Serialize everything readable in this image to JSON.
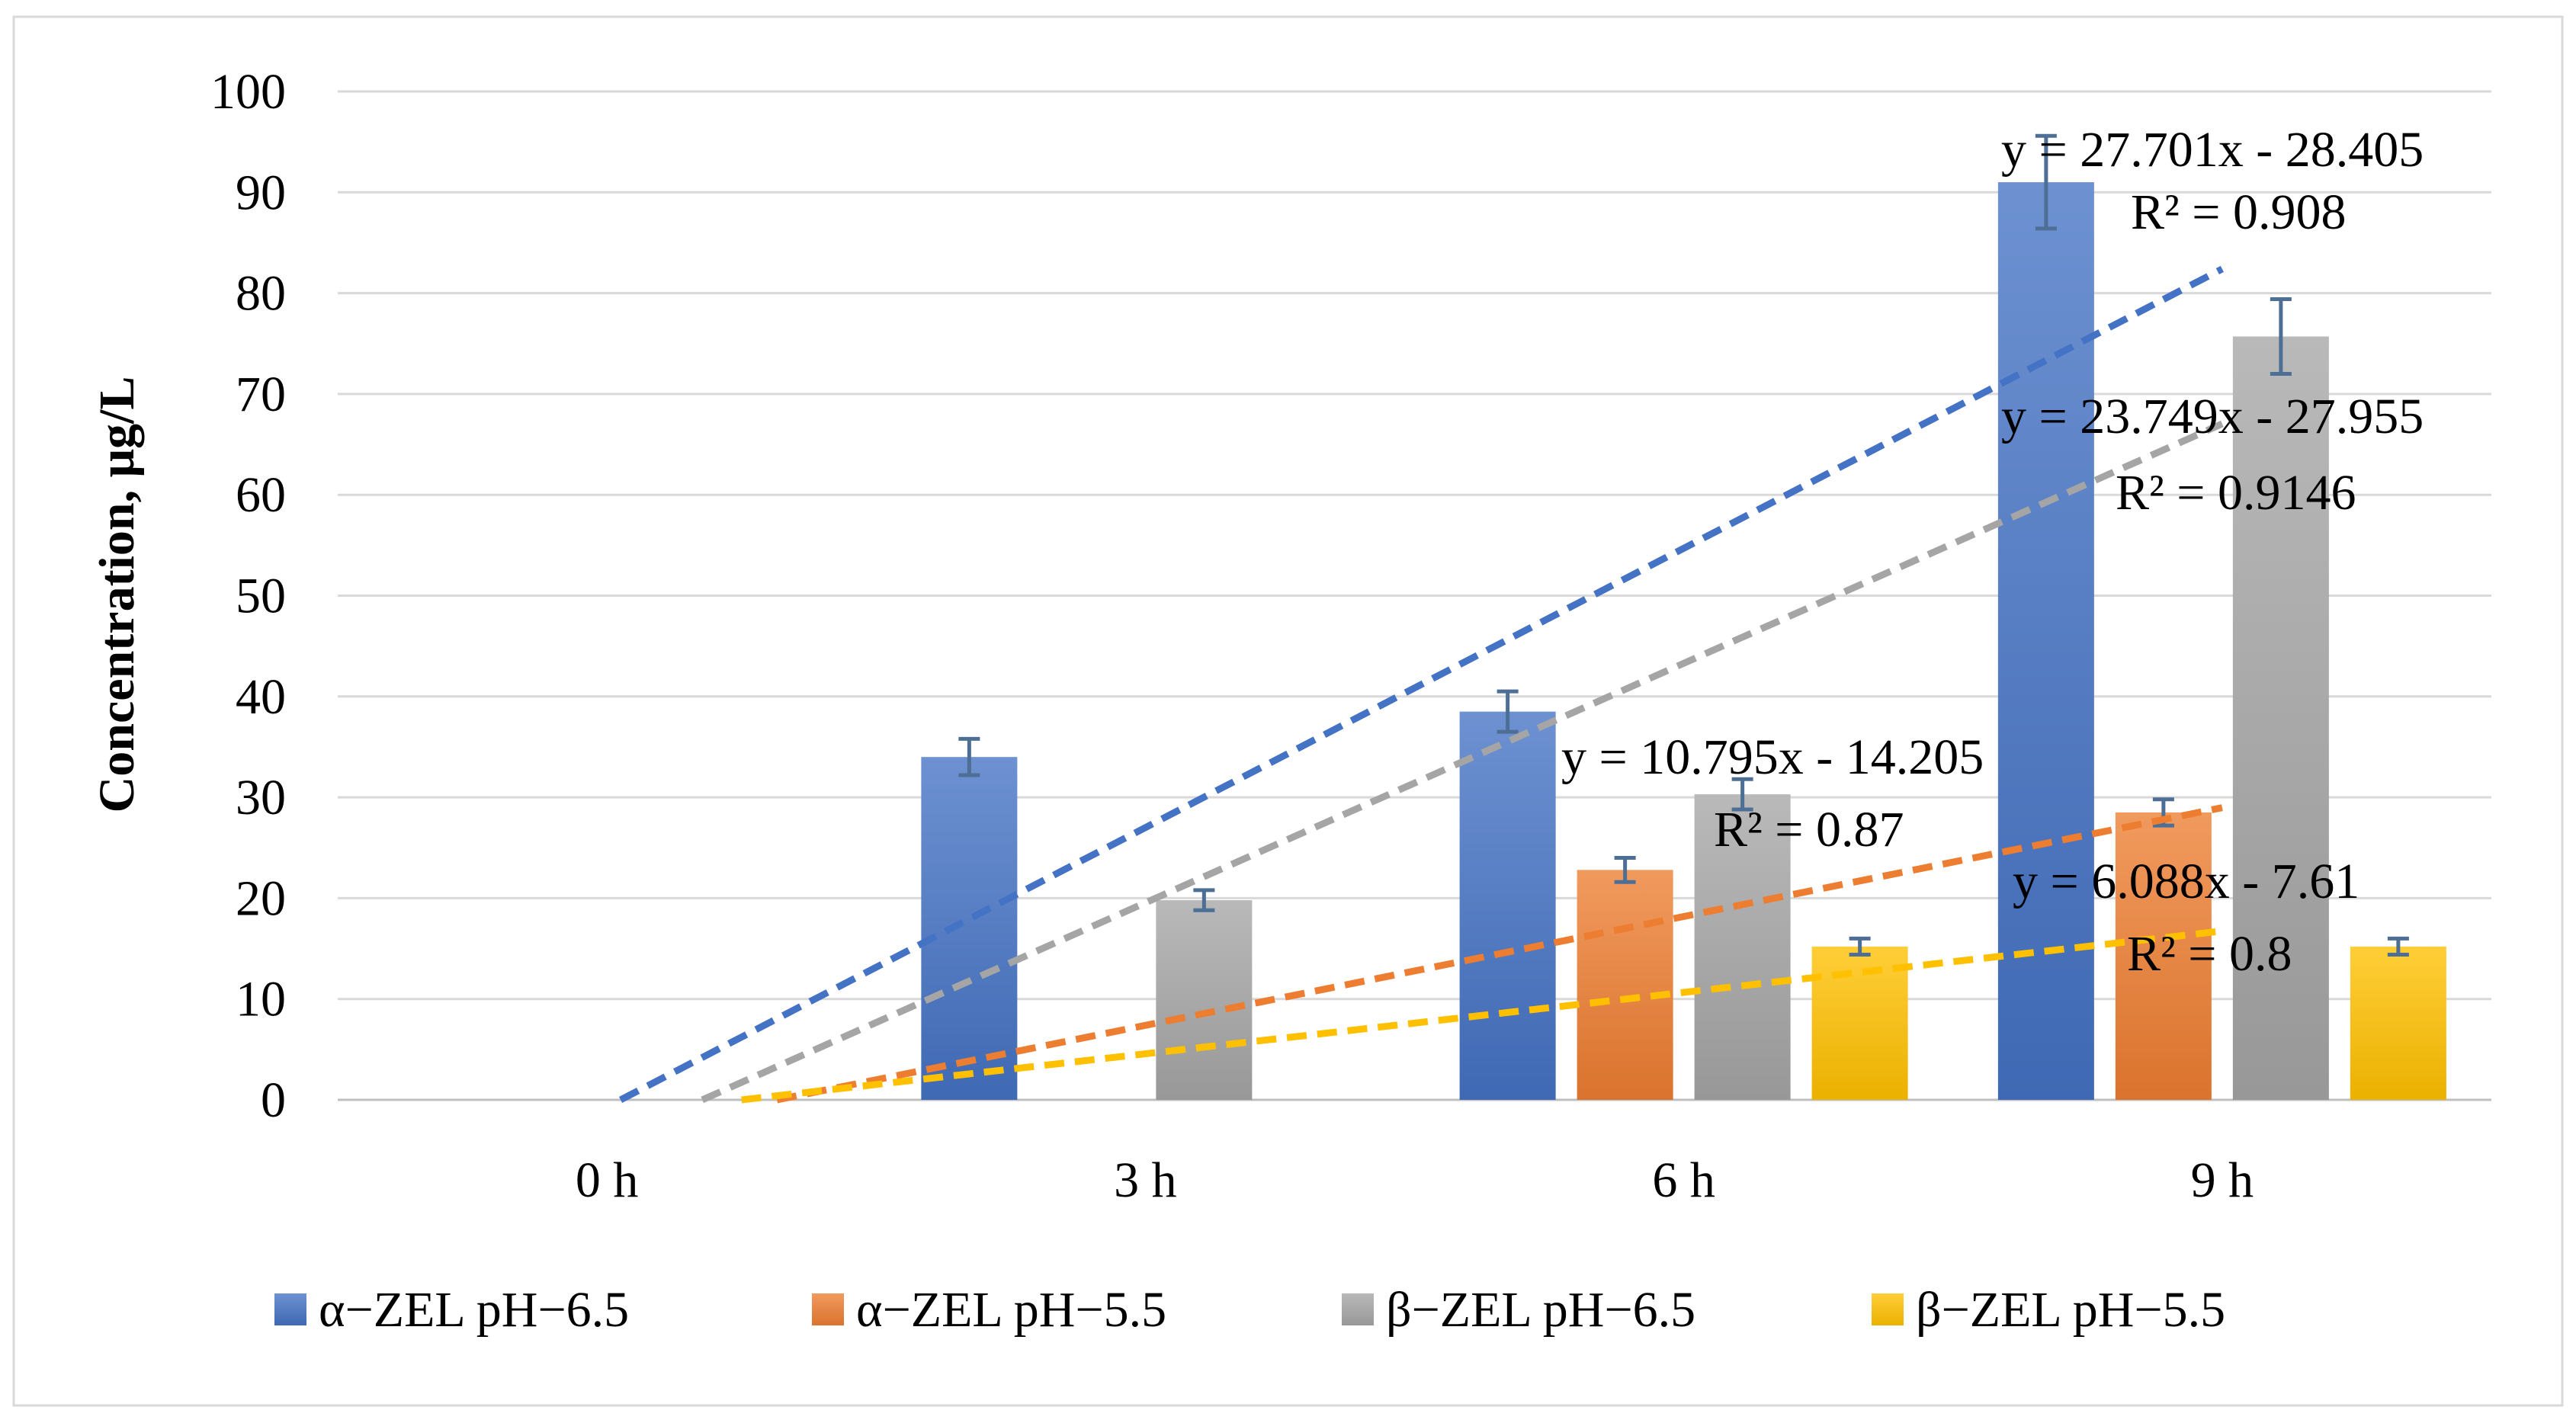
{
  "chart_data": {
    "type": "bar",
    "title": "",
    "xlabel": "",
    "ylabel": "Concentration, μg/L",
    "ylim": [
      0,
      100
    ],
    "yticks": [
      0,
      10,
      20,
      30,
      40,
      50,
      60,
      70,
      80,
      90,
      100
    ],
    "categories": [
      "0 h",
      "3 h",
      "6 h",
      "9 h"
    ],
    "grid": true,
    "legend_position": "bottom",
    "series": [
      {
        "name": "α−ZEL pH−6.5",
        "color": "#4472C4",
        "values": [
          0,
          34,
          38.5,
          91
        ],
        "errors": [
          0,
          1.8,
          2,
          4.6
        ]
      },
      {
        "name": "α−ZEL pH−5.5",
        "color": "#ED7D31",
        "values": [
          0,
          0,
          22.8,
          28.5
        ],
        "errors": [
          0,
          0,
          1.2,
          1.3
        ]
      },
      {
        "name": "β−ZEL pH−6.5",
        "color": "#A5A5A5",
        "values": [
          0,
          19.8,
          30.3,
          75.7
        ],
        "errors": [
          0,
          1,
          1.5,
          3.7
        ]
      },
      {
        "name": "β−ZEL pH−5.5",
        "color": "#FFC000",
        "values": [
          0,
          0,
          15.2,
          15.2
        ],
        "errors": [
          0,
          0,
          0.8,
          0.8
        ]
      }
    ],
    "trendlines": [
      {
        "series": "α−ZEL pH−6.5",
        "slope": 27.701,
        "intercept": -28.405,
        "equation": "y = 27.701x - 28.405",
        "r2": "R² = 0.908"
      },
      {
        "series": "α−ZEL pH−5.5",
        "slope": 10.795,
        "intercept": -14.205,
        "equation": "y = 10.795x - 14.205",
        "r2": "R² = 0.87"
      },
      {
        "series": "β−ZEL pH−6.5",
        "slope": 23.749,
        "intercept": -27.955,
        "equation": "y = 23.749x - 27.955",
        "r2": "R² = 0.9146"
      },
      {
        "series": "β−ZEL pH−5.5",
        "slope": 6.088,
        "intercept": -7.61,
        "equation": "y = 6.088x - 7.61",
        "r2": "R² = 0.8"
      }
    ]
  }
}
